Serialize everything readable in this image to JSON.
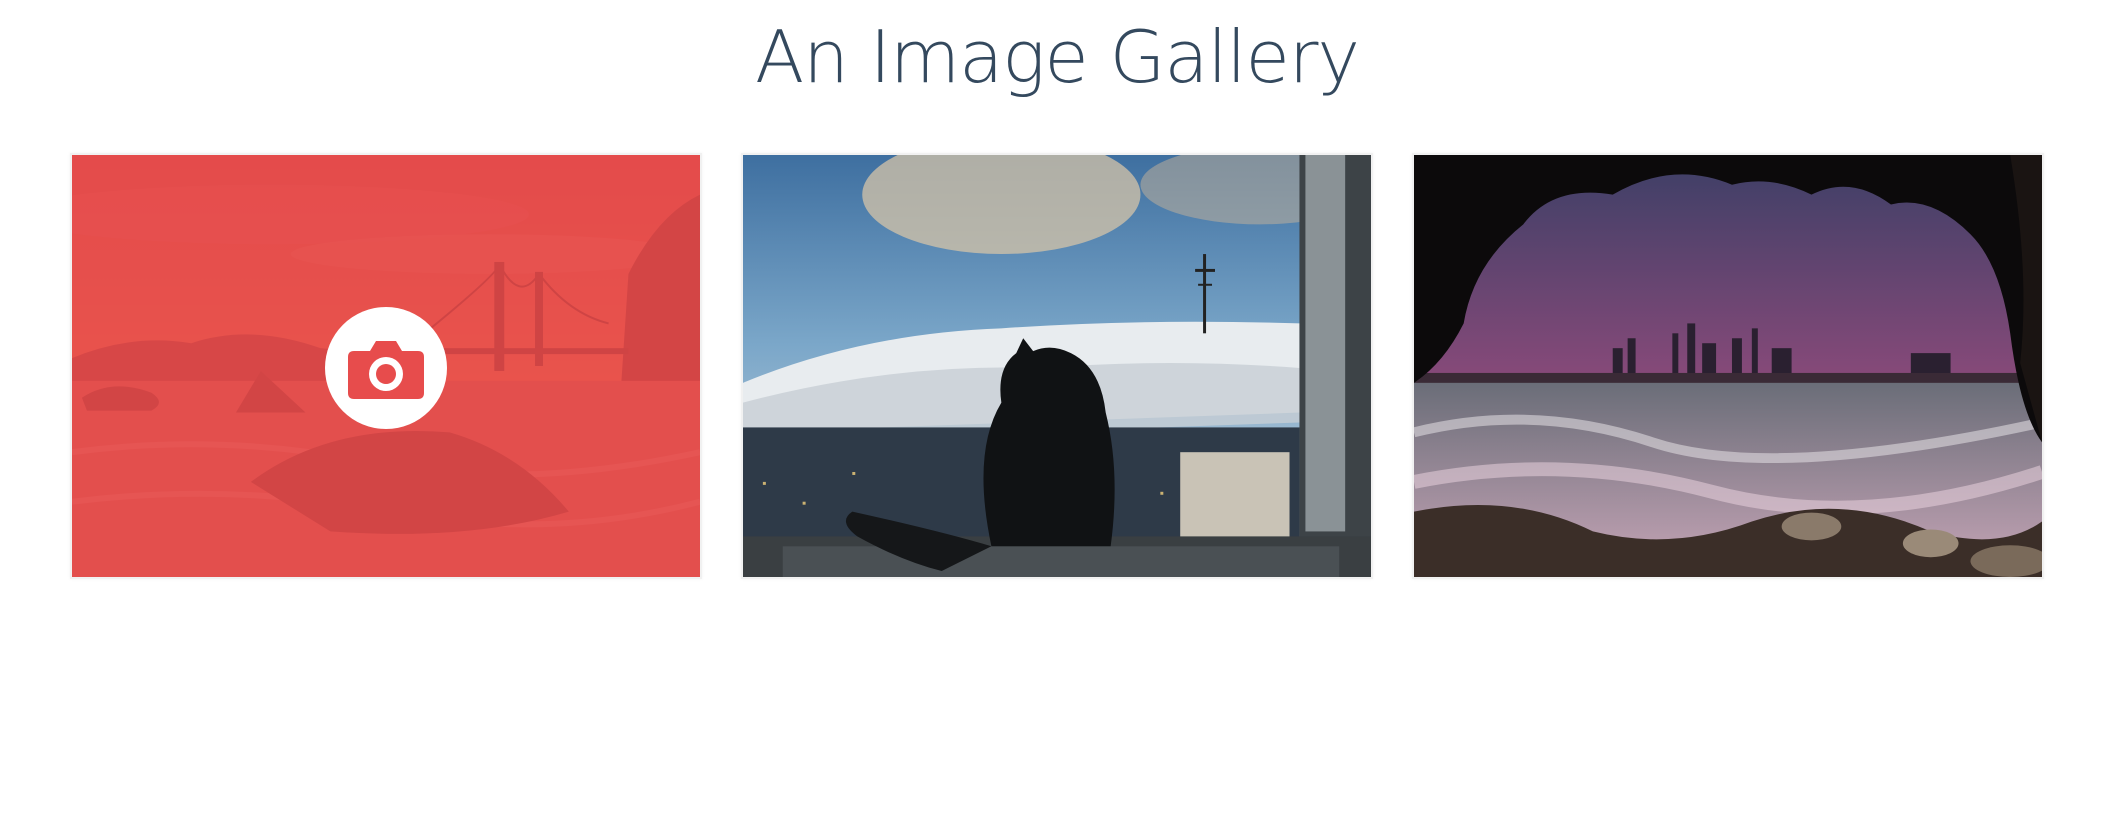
{
  "page": {
    "title": "An Image Gallery"
  },
  "gallery": {
    "items": [
      {
        "scene": "golden-gate-sunset",
        "hovered": true,
        "overlay_color": "#e74c4c",
        "overlay_icon": "camera-icon"
      },
      {
        "scene": "cat-window-sutro-tower-fog",
        "hovered": false
      },
      {
        "scene": "cave-city-skyline-sunset",
        "hovered": false
      }
    ]
  },
  "colors": {
    "title": "#34495e",
    "overlay": "#e74c4c",
    "card_border": "#f1f1f1"
  }
}
